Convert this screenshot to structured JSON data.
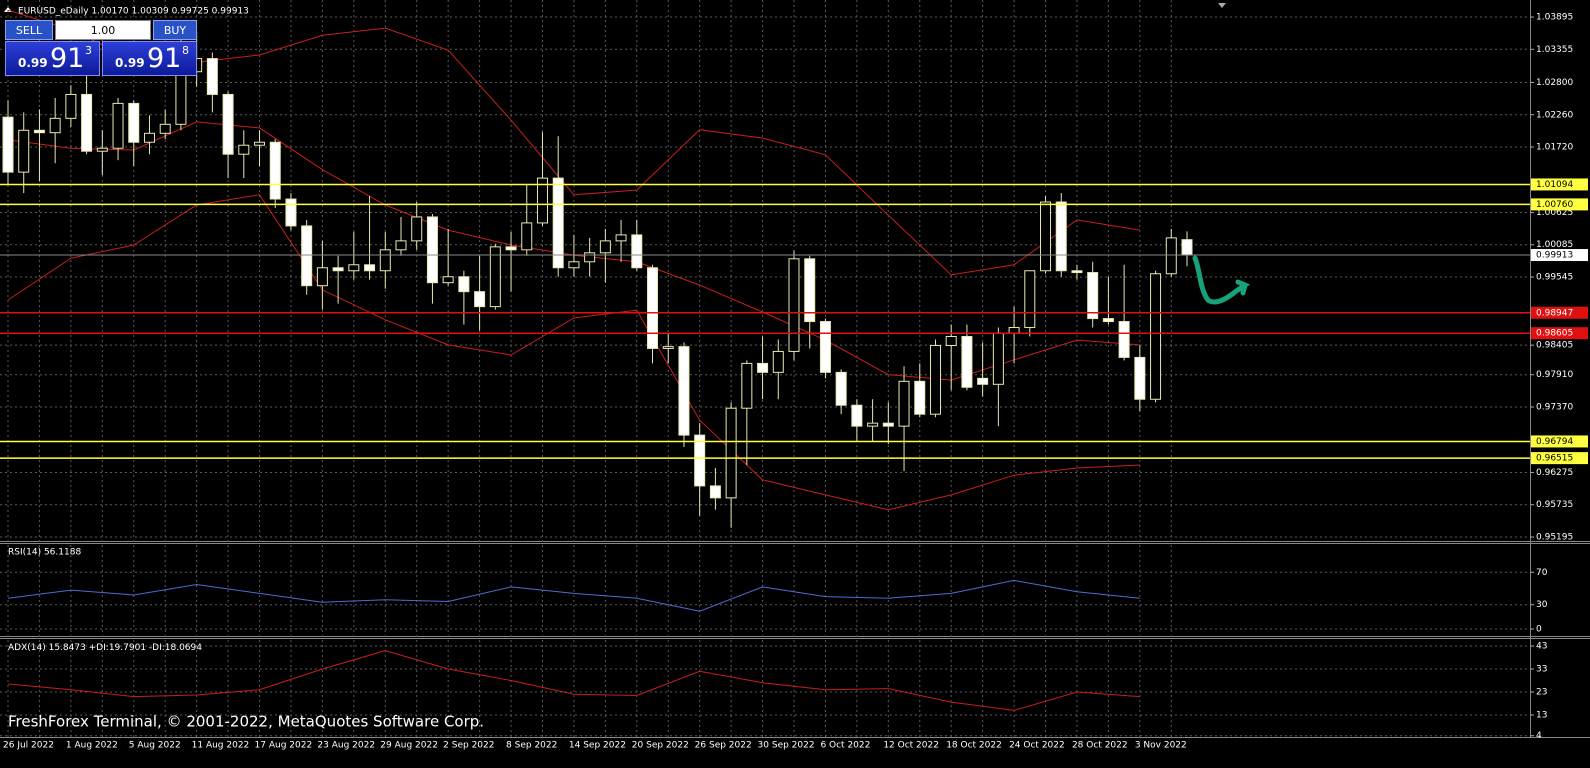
{
  "header": "EURUSD_eDaily  1.00170 1.00309 0.99725 0.99913",
  "trade_panel": {
    "sell": "SELL",
    "lot": "1.00",
    "buy": "BUY",
    "sell_price": {
      "small": "0.99",
      "main": "91",
      "sup": "3"
    },
    "buy_price": {
      "small": "0.99",
      "main": "91",
      "sup": "8"
    }
  },
  "watermark": "FreshForex Terminal, © 2001-2022, MetaQuotes Software Corp.",
  "chart_data": [
    {
      "type": "candlestick",
      "categories": [
        "26 Jul 2022",
        null,
        null,
        null,
        "1 Aug 2022",
        null,
        null,
        null,
        "5 Aug 2022",
        null,
        null,
        null,
        "11 Aug 2022",
        null,
        null,
        null,
        "17 Aug 2022",
        null,
        null,
        null,
        "23 Aug 2022",
        null,
        null,
        null,
        "29 Aug 2022",
        null,
        null,
        null,
        "2 Sep 2022",
        null,
        null,
        null,
        "8 Sep 2022",
        null,
        null,
        null,
        "14 Sep 2022",
        null,
        null,
        null,
        "20 Sep 2022",
        null,
        null,
        null,
        "26 Sep 2022",
        null,
        null,
        null,
        "30 Sep 2022",
        null,
        null,
        null,
        "6 Oct 2022",
        null,
        null,
        null,
        "12 Oct 2022",
        null,
        null,
        null,
        "18 Oct 2022",
        null,
        null,
        null,
        "24 Oct 2022",
        null,
        null,
        null,
        "28 Oct 2022",
        null,
        null,
        null,
        "3 Nov 2022",
        null,
        null,
        null
      ],
      "open": [
        1.0222,
        1.013,
        1.02,
        1.0196,
        1.022,
        1.026,
        1.0165,
        1.017,
        1.0245,
        1.018,
        1.0195,
        1.021,
        1.0298,
        1.032,
        1.026,
        1.016,
        1.0175,
        1.018,
        1.0085,
        1.004,
        0.994,
        0.997,
        0.9965,
        0.9975,
        0.9965,
        1.0,
        1.0015,
        1.0055,
        0.9945,
        0.9955,
        0.993,
        0.9905,
        1.0005,
        1.0,
        1.0045,
        1.012,
        0.997,
        0.998,
        0.9995,
        1.0015,
        1.0025,
        0.997,
        0.9835,
        0.9838,
        0.969,
        0.9605,
        0.9585,
        0.9735,
        0.981,
        0.9795,
        0.983,
        0.9985,
        0.988,
        0.9795,
        0.974,
        0.9705,
        0.971,
        0.9705,
        0.978,
        0.9725,
        0.984,
        0.9855,
        0.9785,
        0.9775,
        0.986,
        0.987,
        0.9965,
        1.008,
        0.9965,
        0.9962,
        0.9885,
        0.988,
        0.982,
        0.975,
        0.996,
        1.0017
      ],
      "high": [
        1.025,
        1.023,
        1.0235,
        1.0254,
        1.0275,
        1.0294,
        1.02,
        1.0254,
        1.025,
        1.0225,
        1.0235,
        1.0368,
        1.0365,
        1.033,
        1.0265,
        1.02,
        1.02,
        1.0185,
        1.0095,
        1.005,
        1.0015,
        0.999,
        1.003,
        1.009,
        1.003,
        1.0055,
        1.008,
        1.006,
        1.0035,
        0.9965,
        0.999,
        1.001,
        1.003,
        1.011,
        1.0197,
        1.019,
        1.0025,
        1.002,
        1.0035,
        1.005,
        1.005,
        0.9975,
        0.986,
        0.9845,
        0.971,
        0.9635,
        0.9745,
        0.9815,
        0.9855,
        0.985,
        0.9999,
        0.999,
        0.9885,
        0.98,
        0.975,
        0.975,
        0.9745,
        0.9805,
        0.981,
        0.985,
        0.9875,
        0.9875,
        0.9845,
        0.987,
        0.9905,
        0.9965,
        1.009,
        1.0095,
        0.9975,
        0.998,
        0.9955,
        0.9975,
        0.984,
        0.9965,
        1.0035,
        1.00309
      ],
      "low": [
        1.011,
        1.0095,
        1.0115,
        1.0145,
        1.0205,
        1.016,
        1.0125,
        1.015,
        1.014,
        1.016,
        1.0185,
        1.02,
        1.0273,
        1.023,
        1.012,
        1.012,
        1.014,
        1.007,
        1.0033,
        0.9925,
        0.99,
        0.991,
        0.995,
        0.995,
        0.9935,
        0.999,
        1.0,
        0.991,
        0.994,
        0.9875,
        0.9865,
        0.99,
        0.993,
        0.999,
        1.004,
        0.9955,
        0.9955,
        0.9955,
        0.9945,
        0.998,
        0.9965,
        0.981,
        0.981,
        0.967,
        0.9555,
        0.9565,
        0.9535,
        0.964,
        0.975,
        0.975,
        0.9815,
        0.9835,
        0.9785,
        0.9725,
        0.968,
        0.968,
        0.9675,
        0.963,
        0.972,
        0.972,
        0.9765,
        0.9765,
        0.9755,
        0.9705,
        0.981,
        0.9855,
        0.996,
        0.9955,
        0.995,
        0.987,
        0.9875,
        0.9815,
        0.973,
        0.9745,
        0.9955,
        0.99725
      ],
      "close": [
        1.013,
        1.02,
        1.0196,
        1.022,
        1.026,
        1.0165,
        1.017,
        1.0245,
        1.018,
        1.0195,
        1.021,
        1.0298,
        1.032,
        1.026,
        1.016,
        1.0175,
        1.018,
        1.0085,
        1.004,
        0.994,
        0.997,
        0.9965,
        0.9975,
        0.9965,
        1.0,
        1.0015,
        1.0055,
        0.9945,
        0.9955,
        0.993,
        0.9905,
        1.0005,
        1.0,
        1.0045,
        1.012,
        0.997,
        0.998,
        0.9995,
        1.0015,
        1.0025,
        0.997,
        0.9835,
        0.9838,
        0.969,
        0.9605,
        0.9585,
        0.9735,
        0.981,
        0.9795,
        0.983,
        0.9985,
        0.988,
        0.9795,
        0.974,
        0.9705,
        0.971,
        0.9705,
        0.978,
        0.9725,
        0.984,
        0.9855,
        0.977,
        0.9775,
        0.986,
        0.987,
        0.9965,
        1.008,
        0.9965,
        0.9962,
        0.9885,
        0.988,
        0.982,
        0.975,
        0.996,
        1.002,
        0.99913
      ],
      "up_color": "#000000",
      "down_color": "#ffffff",
      "wick_color": "#e8e8b0",
      "ylim": [
        0.95145,
        1.0418
      ],
      "yticks": [
        0.95195,
        0.95735,
        0.96275,
        {
          "value": 0.9737,
          "label": "0.97370"
        },
        {
          "value": 0.9791,
          "label": "0.97910"
        },
        0.98405,
        0.99545,
        1.00085,
        1.00625,
        {
          "value": 1.0172,
          "label": "1.01720"
        },
        {
          "value": 1.0226,
          "label": "1.02260"
        },
        {
          "value": 1.028,
          "label": "1.02800"
        },
        1.03355,
        1.03895
      ],
      "grid": true,
      "series": [
        {
          "color": "#c81e1e",
          "x": [
            "26 Jul 2022",
            "1 Aug 2022",
            "5 Aug 2022",
            "11 Aug 2022",
            "17 Aug 2022",
            "23 Aug 2022",
            "29 Aug 2022",
            "2 Sep 2022",
            "8 Sep 2022",
            "14 Sep 2022",
            "20 Sep 2022",
            "26 Sep 2022",
            "30 Sep 2022",
            "6 Oct 2022",
            "12 Oct 2022",
            "18 Oct 2022",
            "24 Oct 2022",
            "28 Oct 2022",
            "3 Nov 2022"
          ],
          "values": [
            1.0401,
            1.0368,
            1.0318,
            1.0314,
            1.0326,
            1.0359,
            1.0371,
            1.0334,
            1.0217,
            1.0092,
            1.01,
            1.0201,
            1.0187,
            1.0159,
            1.0058,
            0.9958,
            0.9975,
            1.005,
            1.0033
          ]
        },
        {
          "color": "#c81e1e",
          "x": [
            "26 Jul 2022",
            "1 Aug 2022",
            "5 Aug 2022",
            "11 Aug 2022",
            "17 Aug 2022",
            "23 Aug 2022",
            "29 Aug 2022",
            "2 Sep 2022",
            "8 Sep 2022",
            "14 Sep 2022",
            "20 Sep 2022",
            "26 Sep 2022",
            "30 Sep 2022",
            "6 Oct 2022",
            "12 Oct 2022",
            "18 Oct 2022",
            "24 Oct 2022",
            "28 Oct 2022",
            "3 Nov 2022"
          ],
          "values": [
            1.0184,
            1.017,
            1.0167,
            1.0214,
            1.0204,
            1.0134,
            1.0075,
            1.0033,
            1.0008,
            0.9991,
            0.998,
            0.9941,
            0.9896,
            0.9849,
            0.9791,
            0.9782,
            0.9816,
            0.9849,
            0.9841
          ]
        },
        {
          "color": "#c81e1e",
          "x": [
            "26 Jul 2022",
            "1 Aug 2022",
            "5 Aug 2022",
            "11 Aug 2022",
            "17 Aug 2022",
            "23 Aug 2022",
            "29 Aug 2022",
            "2 Sep 2022",
            "8 Sep 2022",
            "14 Sep 2022",
            "20 Sep 2022",
            "26 Sep 2022",
            "30 Sep 2022",
            "6 Oct 2022",
            "12 Oct 2022",
            "18 Oct 2022",
            "24 Oct 2022",
            "28 Oct 2022",
            "3 Nov 2022"
          ],
          "values": [
            0.9916,
            0.9986,
            1.0008,
            1.0075,
            1.0092,
            0.9933,
            0.9883,
            0.9841,
            0.9824,
            0.9886,
            0.9899,
            0.9715,
            0.9615,
            0.959,
            0.9565,
            0.959,
            0.9623,
            0.9635,
            0.964
          ]
        }
      ],
      "levels": [
        {
          "value": 1.01094,
          "color": "#ffff40",
          "text_color": "#000000"
        },
        {
          "value": 1.0076,
          "label": "1.00760",
          "color": "#ffff40",
          "text_color": "#000000"
        },
        {
          "value": 0.98947,
          "color": "#e01010",
          "text_color": "#ffffff"
        },
        {
          "value": 0.98605,
          "color": "#e01010",
          "text_color": "#ffffff"
        },
        {
          "value": 0.96794,
          "color": "#ffff40",
          "text_color": "#000000"
        },
        {
          "value": 0.96515,
          "color": "#ffff40",
          "text_color": "#000000"
        }
      ],
      "current_price": 0.99913
    },
    {
      "type": "line",
      "title": "RSI(14) 56.1188",
      "x": [
        "26 Jul 2022",
        "1 Aug 2022",
        "5 Aug 2022",
        "11 Aug 2022",
        "17 Aug 2022",
        "23 Aug 2022",
        "29 Aug 2022",
        "2 Sep 2022",
        "8 Sep 2022",
        "14 Sep 2022",
        "20 Sep 2022",
        "26 Sep 2022",
        "30 Sep 2022",
        "6 Oct 2022",
        "12 Oct 2022",
        "18 Oct 2022",
        "24 Oct 2022",
        "28 Oct 2022",
        "3 Nov 2022"
      ],
      "series": [
        {
          "color": "#4a6fd0",
          "values": [
            38,
            48,
            42,
            55,
            44,
            33,
            36,
            34,
            52,
            44,
            38,
            22,
            52,
            40,
            38,
            44,
            60,
            46,
            38
          ]
        }
      ],
      "ylim": [
        0,
        100
      ],
      "yticks": [
        0,
        30,
        70
      ],
      "grid": true
    },
    {
      "type": "line",
      "title": "ADX(14) 15.8473 +DI:19.7901 -DI:18.0694",
      "x": [
        "26 Jul 2022",
        "1 Aug 2022",
        "5 Aug 2022",
        "11 Aug 2022",
        "17 Aug 2022",
        "23 Aug 2022",
        "29 Aug 2022",
        "2 Sep 2022",
        "8 Sep 2022",
        "14 Sep 2022",
        "20 Sep 2022",
        "26 Sep 2022",
        "30 Sep 2022",
        "6 Oct 2022",
        "12 Oct 2022",
        "18 Oct 2022",
        "24 Oct 2022",
        "28 Oct 2022",
        "3 Nov 2022"
      ],
      "series": [
        {
          "color": "#c81e1e",
          "values": [
            26.5,
            24,
            21,
            21.7,
            24,
            33,
            41,
            33,
            28,
            22,
            21.5,
            32,
            27,
            24,
            24.5,
            18.6,
            15,
            23,
            21
          ]
        }
      ],
      "ylim": [
        4,
        44
      ],
      "yticks": [
        4,
        13,
        23,
        33,
        43
      ],
      "grid": true
    }
  ]
}
